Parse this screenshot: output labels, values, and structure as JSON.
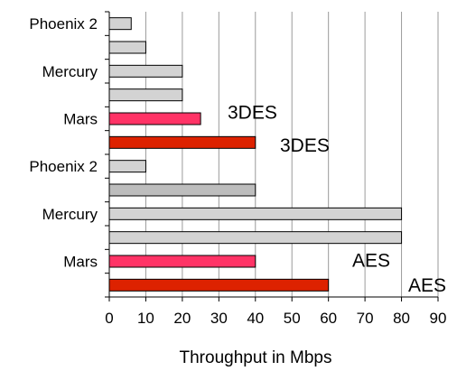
{
  "chart_data": {
    "type": "bar",
    "orientation": "horizontal",
    "title": "",
    "xlabel": "Throughput in Mbps",
    "ylabel": "",
    "xlim": [
      0,
      90
    ],
    "xticks": [
      "0",
      "10",
      "20",
      "30",
      "40",
      "50",
      "60",
      "70",
      "80",
      "90"
    ],
    "grid": true,
    "bars": [
      {
        "label": "Phoenix 2",
        "value": 6,
        "color": "#d3d3d3"
      },
      {
        "label": "",
        "value": 10,
        "color": "#d3d3d3"
      },
      {
        "label": "Mercury",
        "value": 20,
        "color": "#d3d3d3"
      },
      {
        "label": "",
        "value": 20,
        "color": "#d3d3d3"
      },
      {
        "label": "Mars",
        "value": 25,
        "color": "#ff3366"
      },
      {
        "label": "",
        "value": 40,
        "color": "#dd2200"
      },
      {
        "label": "Phoenix 2",
        "value": 10,
        "color": "#d3d3d3"
      },
      {
        "label": "",
        "value": 40,
        "color": "#bdbdbd"
      },
      {
        "label": "Mercury",
        "value": 80,
        "color": "#d3d3d3"
      },
      {
        "label": "",
        "value": 80,
        "color": "#d3d3d3"
      },
      {
        "label": "Mars",
        "value": 40,
        "color": "#ff3366"
      },
      {
        "label": "",
        "value": 60,
        "color": "#dd2200"
      }
    ],
    "annotations": [
      {
        "text": "3DES",
        "bar_index": 4
      },
      {
        "text": "3DES",
        "bar_index": 5
      },
      {
        "text": "AES",
        "bar_index": 10
      },
      {
        "text": "AES",
        "bar_index": 11
      }
    ]
  }
}
